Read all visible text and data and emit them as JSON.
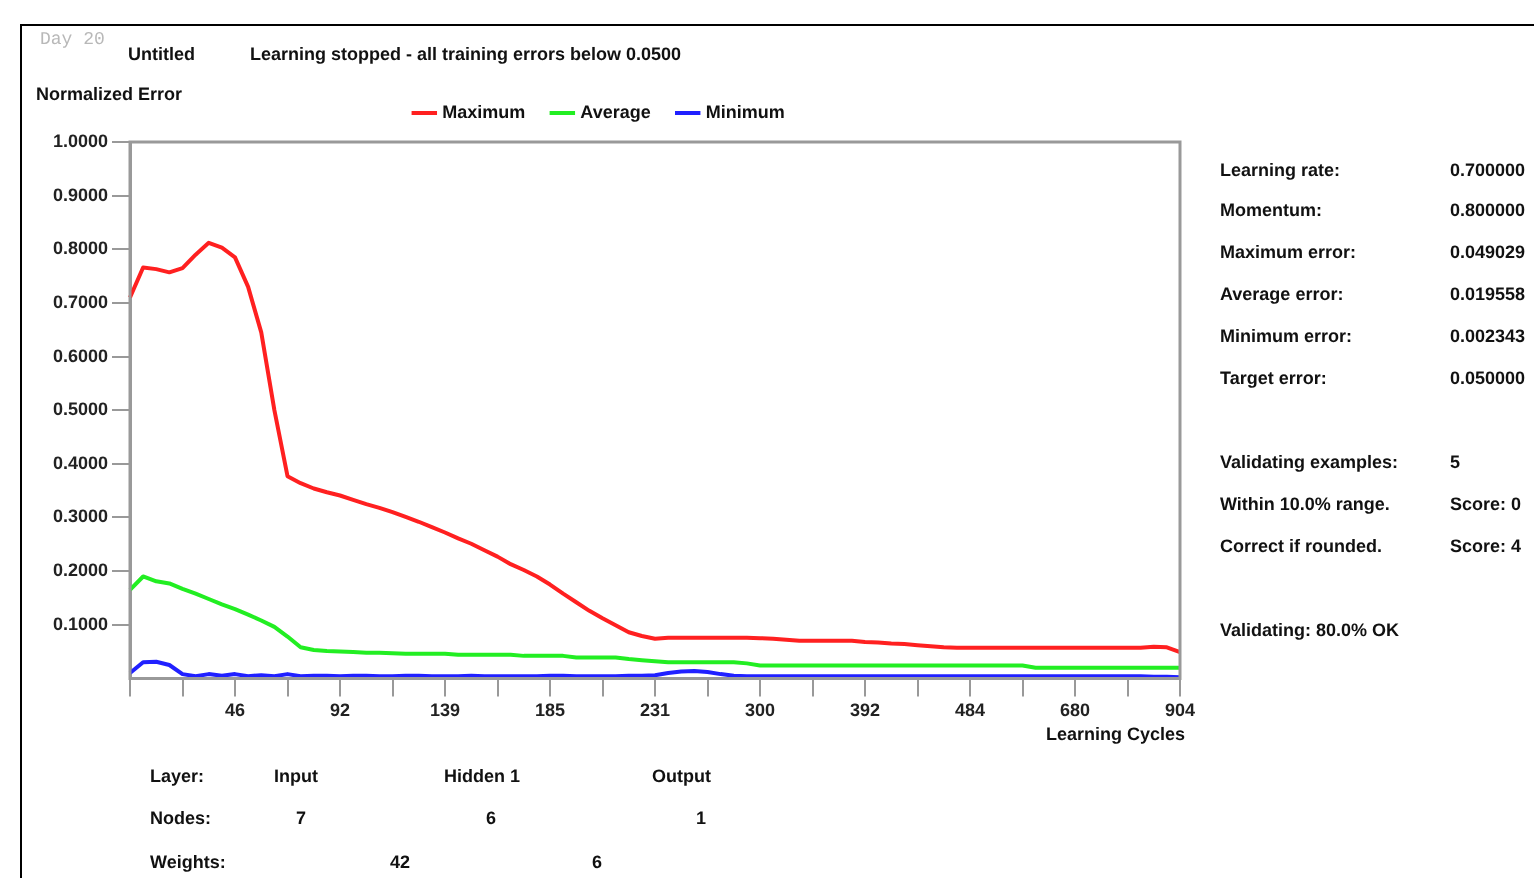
{
  "chart_data": [
    {
      "type": "line",
      "title": "Untitled",
      "subtitle": "Learning stopped - all training errors below 0.0500",
      "ylabel": "Normalized Error",
      "xlabel": "Learning Cycles",
      "annotations": [
        "Day 20"
      ],
      "categories": [
        null,
        null,
        null,
        null,
        null,
        null,
        null,
        null,
        "46",
        null,
        null,
        null,
        null,
        null,
        null,
        null,
        "92",
        null,
        null,
        null,
        null,
        null,
        null,
        null,
        "139",
        null,
        null,
        null,
        null,
        null,
        null,
        null,
        "185",
        null,
        null,
        null,
        null,
        null,
        null,
        null,
        "231",
        null,
        null,
        null,
        null,
        null,
        null,
        null,
        "300",
        null,
        null,
        null,
        null,
        null,
        null,
        null,
        "392",
        null,
        null,
        null,
        null,
        null,
        null,
        null,
        "484",
        null,
        null,
        null,
        null,
        null,
        null,
        null,
        "680",
        null,
        null,
        null,
        null,
        null,
        null,
        null,
        "904"
      ],
      "series": [
        {
          "name": "Maximum",
          "color": "#ff2020",
          "values": [
            0.71,
            0.766,
            0.763,
            0.757,
            0.765,
            0.79,
            0.812,
            0.803,
            0.785,
            0.73,
            0.645,
            0.5,
            0.377,
            0.364,
            0.354,
            0.347,
            0.341,
            0.333,
            0.325,
            0.318,
            0.31,
            0.301,
            0.292,
            0.282,
            0.272,
            0.261,
            0.251,
            0.239,
            0.227,
            0.213,
            0.202,
            0.19,
            0.175,
            0.158,
            0.142,
            0.126,
            0.112,
            0.099,
            0.086,
            0.079,
            0.074,
            0.076,
            0.076,
            0.076,
            0.076,
            0.076,
            0.076,
            0.076,
            0.075,
            0.074,
            0.072,
            0.07,
            0.07,
            0.07,
            0.07,
            0.07,
            0.068,
            0.067,
            0.065,
            0.064,
            0.062,
            0.06,
            0.058,
            0.057,
            0.057,
            0.057,
            0.057,
            0.057,
            0.057,
            0.057,
            0.057,
            0.057,
            0.057,
            0.057,
            0.057,
            0.057,
            0.057,
            0.057,
            0.059,
            0.058,
            0.049
          ]
        },
        {
          "name": "Average",
          "color": "#22ee22",
          "values": [
            0.165,
            0.19,
            0.181,
            0.177,
            0.167,
            0.158,
            0.148,
            0.138,
            0.129,
            0.119,
            0.108,
            0.096,
            0.078,
            0.058,
            0.053,
            0.051,
            0.05,
            0.049,
            0.048,
            0.048,
            0.047,
            0.046,
            0.046,
            0.046,
            0.046,
            0.044,
            0.044,
            0.044,
            0.044,
            0.044,
            0.042,
            0.042,
            0.042,
            0.042,
            0.039,
            0.039,
            0.039,
            0.039,
            0.036,
            0.034,
            0.032,
            0.03,
            0.03,
            0.03,
            0.03,
            0.03,
            0.03,
            0.028,
            0.024,
            0.024,
            0.024,
            0.024,
            0.024,
            0.024,
            0.024,
            0.024,
            0.024,
            0.024,
            0.024,
            0.024,
            0.024,
            0.024,
            0.024,
            0.024,
            0.024,
            0.024,
            0.024,
            0.024,
            0.024,
            0.02,
            0.02,
            0.02,
            0.02,
            0.02,
            0.02,
            0.02,
            0.02,
            0.02,
            0.02,
            0.02,
            0.02
          ]
        },
        {
          "name": "Minimum",
          "color": "#2020ff",
          "values": [
            0.01,
            0.03,
            0.031,
            0.025,
            0.008,
            0.004,
            0.008,
            0.005,
            0.008,
            0.004,
            0.006,
            0.004,
            0.008,
            0.004,
            0.005,
            0.005,
            0.004,
            0.005,
            0.005,
            0.004,
            0.004,
            0.005,
            0.005,
            0.004,
            0.004,
            0.004,
            0.005,
            0.004,
            0.004,
            0.004,
            0.004,
            0.004,
            0.005,
            0.005,
            0.004,
            0.004,
            0.004,
            0.004,
            0.005,
            0.005,
            0.006,
            0.01,
            0.013,
            0.014,
            0.012,
            0.008,
            0.005,
            0.004,
            0.004,
            0.004,
            0.004,
            0.004,
            0.004,
            0.004,
            0.004,
            0.004,
            0.004,
            0.004,
            0.004,
            0.004,
            0.004,
            0.004,
            0.004,
            0.004,
            0.004,
            0.004,
            0.004,
            0.004,
            0.004,
            0.004,
            0.004,
            0.004,
            0.004,
            0.004,
            0.004,
            0.004,
            0.004,
            0.004,
            0.003,
            0.003,
            0.002
          ]
        }
      ],
      "ylim": [
        0,
        1
      ],
      "yticks": [
        {
          "value": 0.1,
          "label": "0.1000"
        },
        {
          "value": 0.2,
          "label": "0.2000"
        },
        {
          "value": 0.3,
          "label": "0.3000"
        },
        {
          "value": 0.4,
          "label": "0.4000"
        },
        {
          "value": 0.5,
          "label": "0.5000"
        },
        {
          "value": 0.6,
          "label": "0.6000"
        },
        {
          "value": 0.7,
          "label": "0.7000"
        },
        {
          "value": 0.8,
          "label": "0.8000"
        },
        {
          "value": 0.9,
          "label": "0.9000"
        },
        {
          "value": 1,
          "label": "1.0000"
        }
      ],
      "grid": false,
      "legend": "top",
      "marker": "none",
      "line_style": "solid"
    },
    {
      "type": "other",
      "annotations": [
        "Learning rate:",
        "0.700000",
        "Momentum:",
        "0.800000",
        "Maximum error:",
        "0.049029",
        "Average error:",
        "0.019558",
        "Minimum error:",
        "0.002343",
        "Target error:",
        "0.050000",
        "Validating examples:",
        "5",
        "Within 10.0% range.",
        "Score: 0",
        "Correct if rounded.",
        "Score: 4",
        "Validating: 80.0% OK"
      ]
    },
    {
      "type": "other",
      "annotations": [
        "Layer:",
        "Input",
        "Hidden 1",
        "Output",
        "Nodes:",
        "7",
        "6",
        "1",
        "Weights:",
        "42",
        "6"
      ]
    }
  ]
}
